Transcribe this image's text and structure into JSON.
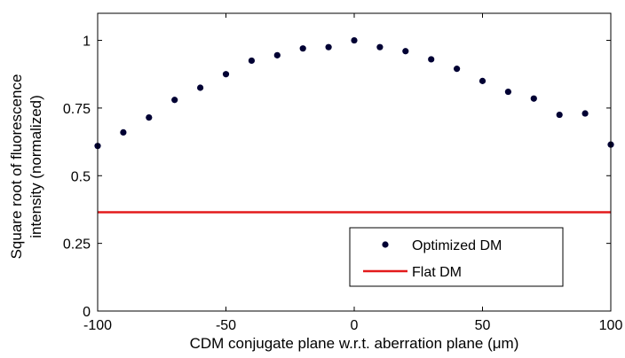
{
  "chart_data": {
    "type": "scatter",
    "xlabel": "CDM conjugate plane w.r.t. aberration plane (μm)",
    "ylabel_lines": [
      "Square root of fluorescence",
      "intensity (normalized)"
    ],
    "xlim": [
      -100,
      100
    ],
    "ylim": [
      0,
      1.1
    ],
    "xticks": [
      -100,
      -50,
      0,
      50,
      100
    ],
    "xtick_labels": [
      "-100",
      "-50",
      "0",
      "50",
      "100"
    ],
    "yticks": [
      0,
      0.25,
      0.5,
      0.75,
      1
    ],
    "ytick_labels": [
      "0",
      "0.25",
      "0.5",
      "0.75",
      "1"
    ],
    "grid": false,
    "legend_position": "bottom-right",
    "series": [
      {
        "name": "Optimized DM",
        "kind": "points",
        "color": "#000033",
        "x": [
          -100,
          -90,
          -80,
          -70,
          -60,
          -50,
          -40,
          -30,
          -20,
          -10,
          0,
          10,
          20,
          30,
          40,
          50,
          60,
          70,
          80,
          90,
          100
        ],
        "y": [
          0.61,
          0.66,
          0.715,
          0.78,
          0.825,
          0.875,
          0.925,
          0.945,
          0.97,
          0.975,
          1.0,
          0.975,
          0.96,
          0.93,
          0.895,
          0.85,
          0.81,
          0.785,
          0.725,
          0.73,
          0.615
        ]
      },
      {
        "name": "Flat DM",
        "kind": "line",
        "color": "#e31a1c",
        "x": [
          -100,
          100
        ],
        "y": [
          0.365,
          0.365
        ]
      }
    ]
  }
}
